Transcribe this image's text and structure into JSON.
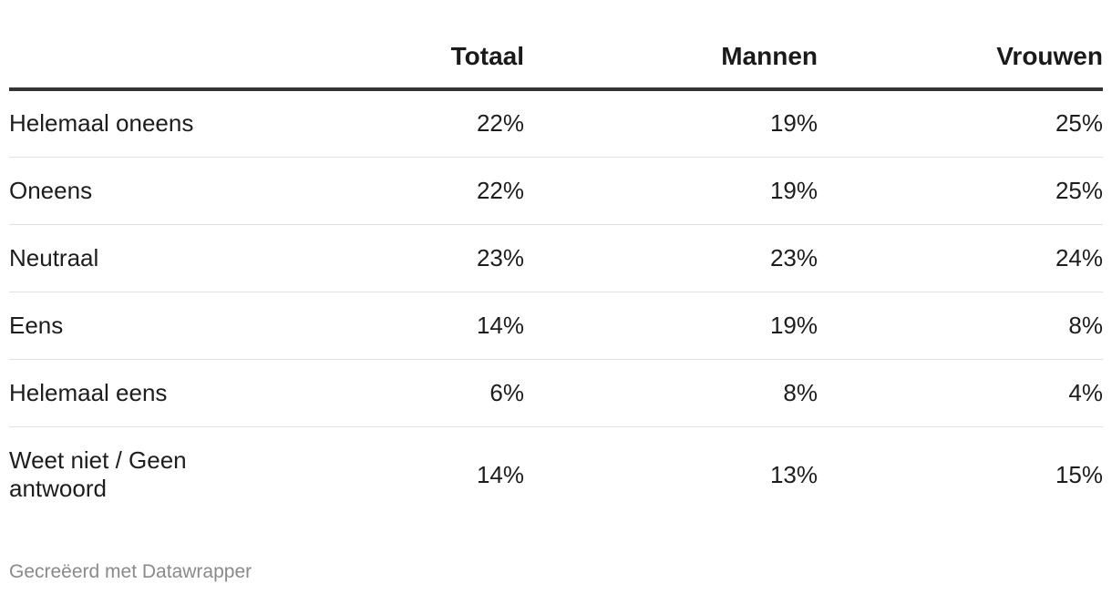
{
  "chart_data": {
    "type": "table",
    "columns": [
      "",
      "Totaal",
      "Mannen",
      "Vrouwen"
    ],
    "rows": [
      {
        "label": "Helemaal oneens",
        "values": [
          "22%",
          "19%",
          "25%"
        ]
      },
      {
        "label": "Oneens",
        "values": [
          "22%",
          "19%",
          "25%"
        ]
      },
      {
        "label": "Neutraal",
        "values": [
          "23%",
          "23%",
          "24%"
        ]
      },
      {
        "label": "Eens",
        "values": [
          "14%",
          "19%",
          "8%"
        ]
      },
      {
        "label": "Helemaal eens",
        "values": [
          "6%",
          "8%",
          "4%"
        ]
      },
      {
        "label": "Weet niet / Geen antwoord",
        "values": [
          "14%",
          "13%",
          "15%"
        ]
      }
    ]
  },
  "footer": {
    "credit": "Gecreëerd met Datawrapper"
  }
}
